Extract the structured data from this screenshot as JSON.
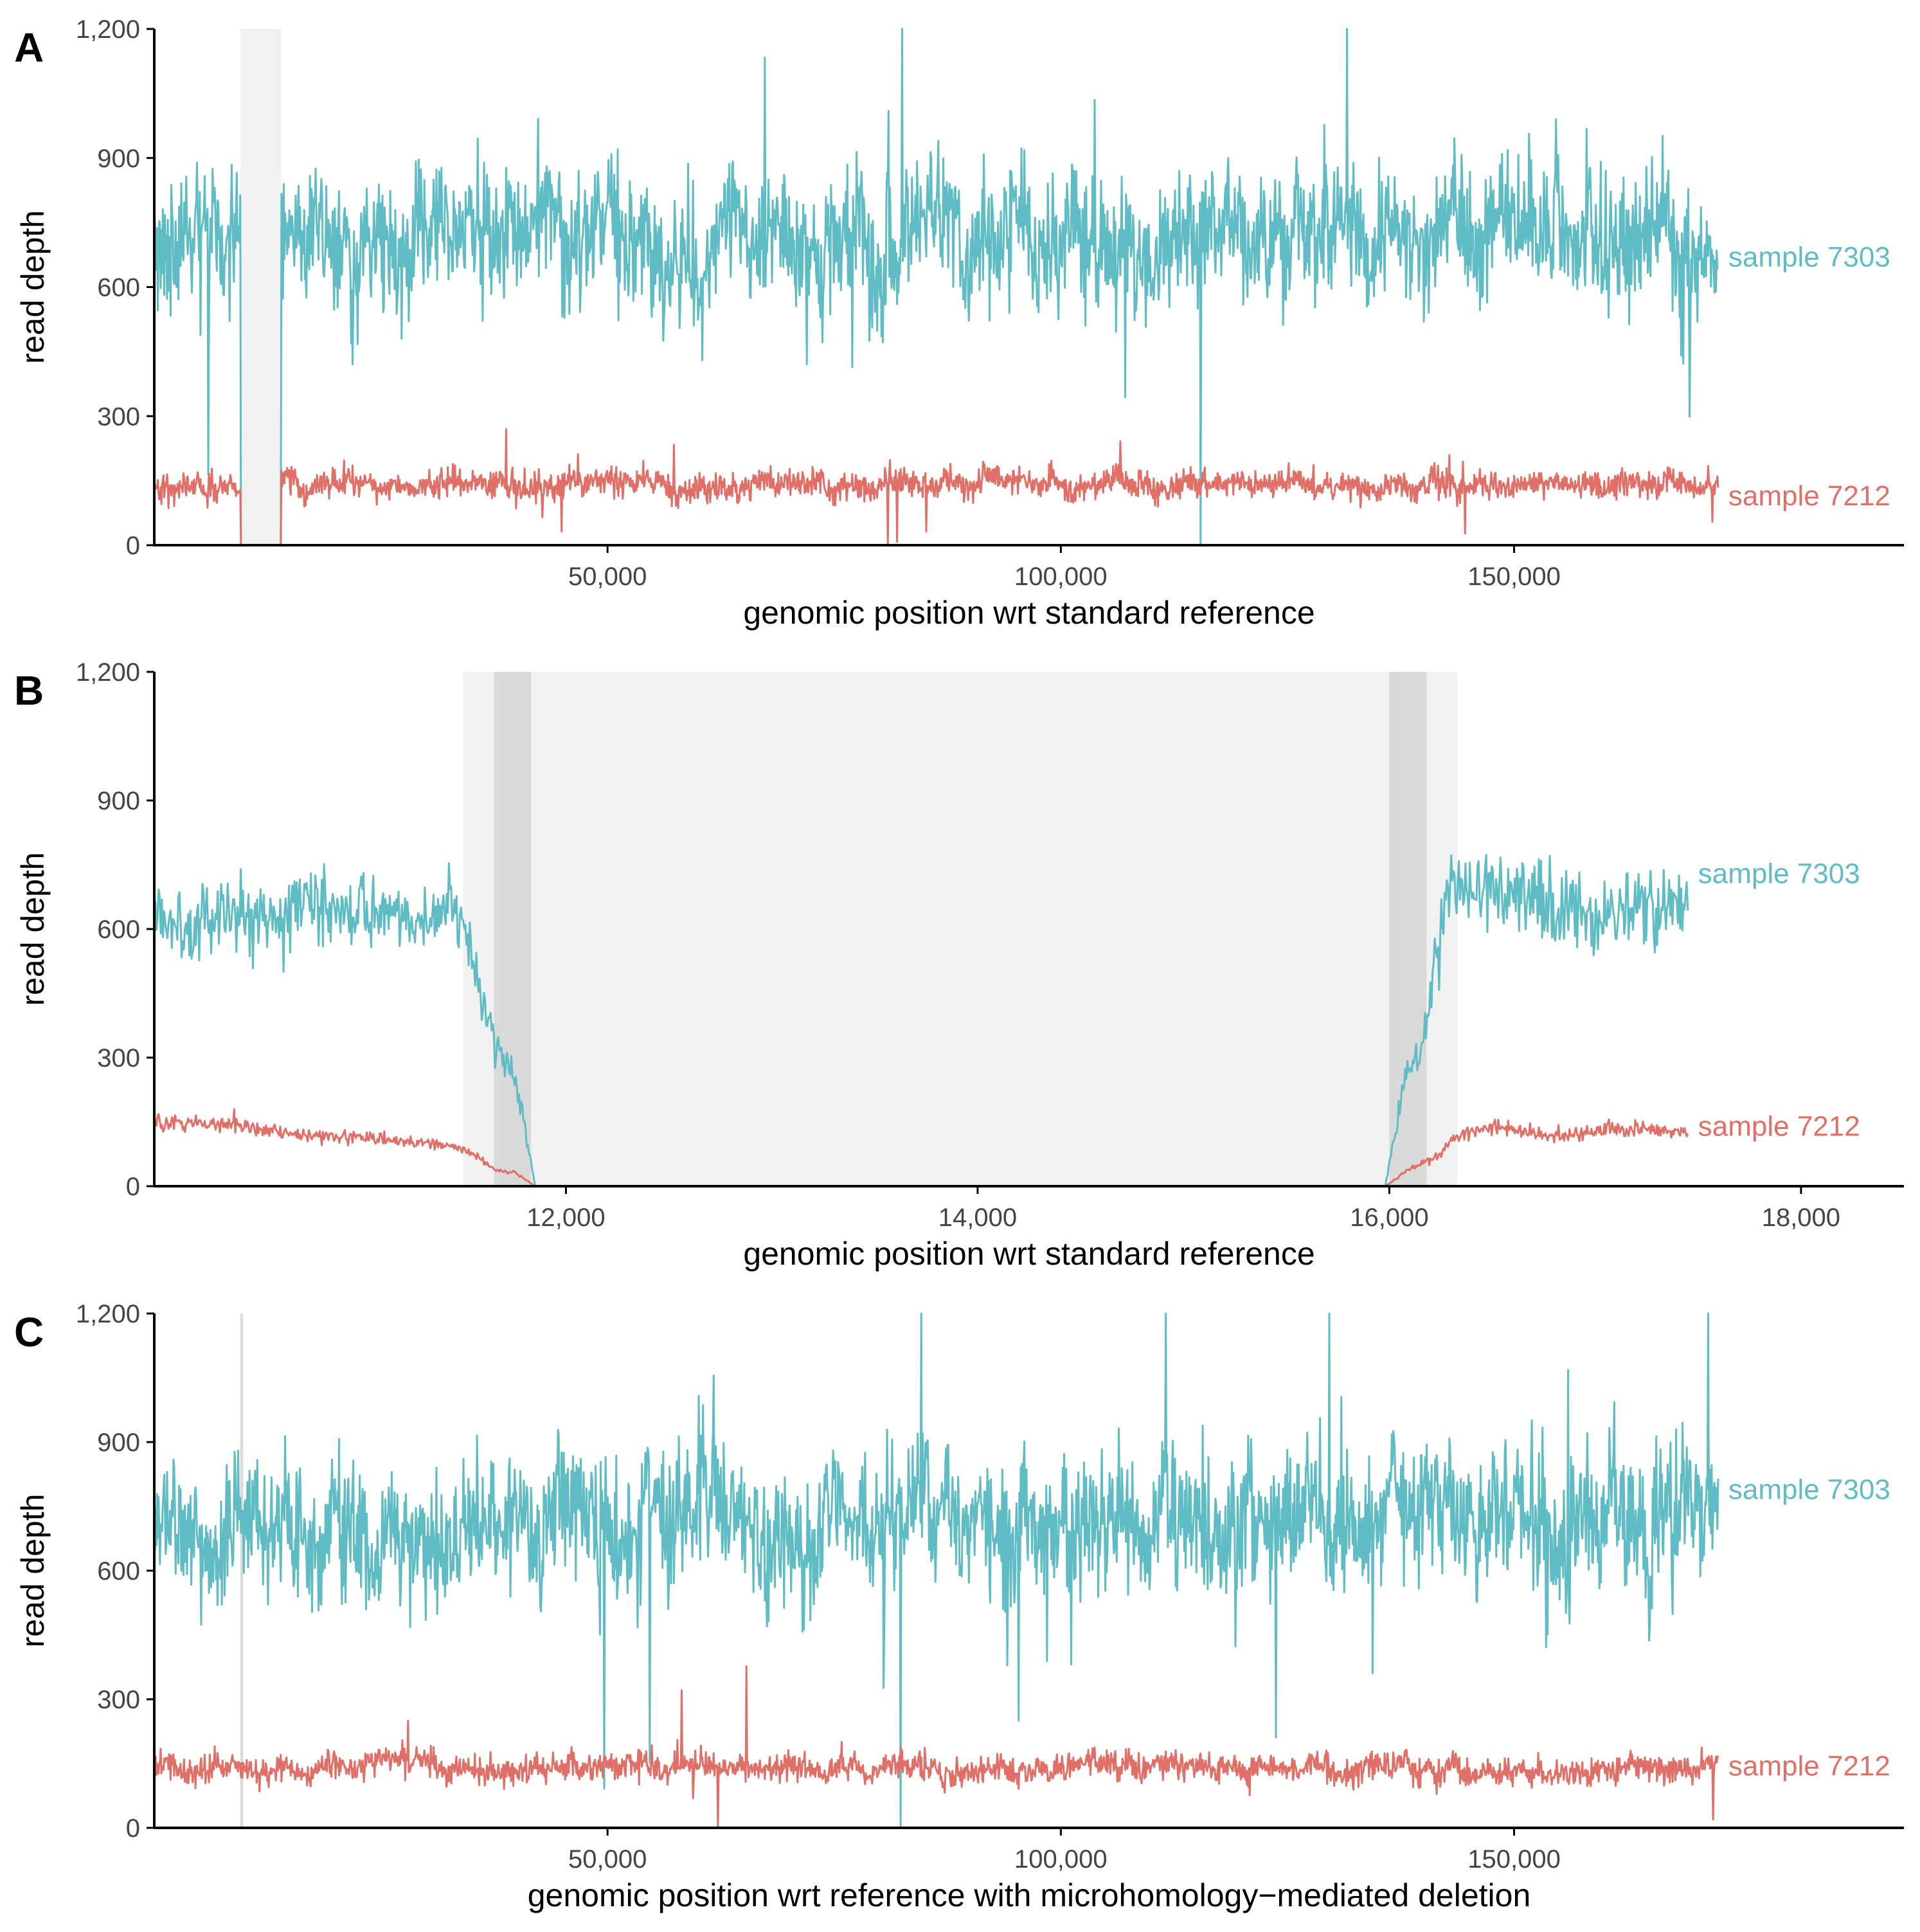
{
  "colors": {
    "teal": "#5fbcc4",
    "salmon": "#e07067",
    "axis": "#000000",
    "tick_text": "#444444",
    "shade_light": "#f1f1f1",
    "shade_dark": "#d9d9d9"
  },
  "chart_data": [
    {
      "type": "line",
      "panel_label": "A",
      "xlabel": "genomic position wrt standard reference",
      "ylabel": "read depth",
      "xlim": [
        1,
        193000
      ],
      "ylim": [
        0,
        1200
      ],
      "x_ticks": [
        50000,
        100000,
        150000
      ],
      "x_tick_labels": [
        "50,000",
        "100,000",
        "150,000"
      ],
      "y_ticks": [
        0,
        300,
        600,
        900,
        1200
      ],
      "y_tick_labels": [
        "0",
        "300",
        "600",
        "900",
        "1,200"
      ],
      "grid": false,
      "shaded_regions": [
        {
          "start": 9500,
          "end": 14000,
          "tone": "light"
        }
      ],
      "series": [
        {
          "name": "sample 7303",
          "label": "sample 7303",
          "color": "#5fbcc4",
          "label_y": 670,
          "profile": "genome",
          "x_start": 1,
          "x_end": 172500,
          "mean": 700,
          "noise": 130,
          "dropouts": [
            [
              9500,
              14000
            ]
          ],
          "seed": 11
        },
        {
          "name": "sample 7212",
          "label": "sample 7212",
          "color": "#e07067",
          "label_y": 115,
          "profile": "genome",
          "x_start": 1,
          "x_end": 172500,
          "mean": 140,
          "noise": 28,
          "dropouts": [
            [
              9500,
              14000
            ]
          ],
          "seed": 23
        }
      ]
    },
    {
      "type": "line",
      "panel_label": "B",
      "xlabel": "genomic position wrt standard reference",
      "ylabel": "read depth",
      "xlim": [
        10000,
        18500
      ],
      "ylim": [
        0,
        1200
      ],
      "x_ticks": [
        12000,
        14000,
        16000,
        18000
      ],
      "x_tick_labels": [
        "12,000",
        "14,000",
        "16,000",
        "18,000"
      ],
      "y_ticks": [
        0,
        300,
        600,
        900,
        1200
      ],
      "y_tick_labels": [
        "0",
        "300",
        "600",
        "900",
        "1,200"
      ],
      "grid": false,
      "shaded_regions": [
        {
          "start": 11500,
          "end": 16330,
          "tone": "light"
        },
        {
          "start": 11650,
          "end": 11830,
          "tone": "dark"
        },
        {
          "start": 16000,
          "end": 16180,
          "tone": "dark"
        }
      ],
      "series": [
        {
          "name": "sample 7303",
          "label": "sample 7303",
          "color": "#5fbcc4",
          "label_y": 730,
          "profile": "zoom",
          "x_start": 10000,
          "x_end": 17450,
          "seed": 5,
          "points": [
            [
              10000,
              620
            ],
            [
              10300,
              630
            ],
            [
              10700,
              650
            ],
            [
              11000,
              660
            ],
            [
              11300,
              620
            ],
            [
              11450,
              650
            ],
            [
              11550,
              520
            ],
            [
              11650,
              340
            ],
            [
              11720,
              290
            ],
            [
              11780,
              200
            ],
            [
              11850,
              0
            ],
            [
              15980,
              0
            ],
            [
              16030,
              130
            ],
            [
              16080,
              260
            ],
            [
              16150,
              300
            ],
            [
              16200,
              450
            ],
            [
              16300,
              700
            ],
            [
              16600,
              690
            ],
            [
              16900,
              640
            ],
            [
              17200,
              650
            ],
            [
              17450,
              660
            ]
          ]
        },
        {
          "name": "sample 7212",
          "label": "sample 7212",
          "color": "#e07067",
          "label_y": 140,
          "profile": "zoom",
          "x_start": 10000,
          "x_end": 17450,
          "seed": 9,
          "points": [
            [
              10000,
              150
            ],
            [
              10400,
              140
            ],
            [
              10700,
              120
            ],
            [
              11000,
              115
            ],
            [
              11300,
              100
            ],
            [
              11450,
              95
            ],
            [
              11550,
              75
            ],
            [
              11650,
              40
            ],
            [
              11760,
              30
            ],
            [
              11850,
              0
            ],
            [
              15980,
              0
            ],
            [
              16100,
              40
            ],
            [
              16230,
              70
            ],
            [
              16330,
              120
            ],
            [
              16500,
              140
            ],
            [
              16800,
              115
            ],
            [
              17100,
              135
            ],
            [
              17450,
              125
            ]
          ]
        }
      ]
    },
    {
      "type": "line",
      "panel_label": "C",
      "xlabel": "genomic position wrt reference with microhomology−mediated deletion",
      "ylabel": "read depth",
      "xlim": [
        1,
        193000
      ],
      "ylim": [
        0,
        1200
      ],
      "x_ticks": [
        50000,
        100000,
        150000
      ],
      "x_tick_labels": [
        "50,000",
        "100,000",
        "150,000"
      ],
      "y_ticks": [
        0,
        300,
        600,
        900,
        1200
      ],
      "y_tick_labels": [
        "0",
        "300",
        "600",
        "900",
        "1,200"
      ],
      "grid": false,
      "shaded_regions": [
        {
          "start": 9500,
          "end": 9800,
          "tone": "dark"
        }
      ],
      "series": [
        {
          "name": "sample 7303",
          "label": "sample 7303",
          "color": "#5fbcc4",
          "label_y": 790,
          "profile": "genome",
          "x_start": 1,
          "x_end": 172500,
          "mean": 710,
          "noise": 135,
          "dropouts": [],
          "seed": 37
        },
        {
          "name": "sample 7212",
          "label": "sample 7212",
          "color": "#e07067",
          "label_y": 145,
          "profile": "genome",
          "x_start": 1,
          "x_end": 172500,
          "mean": 142,
          "noise": 28,
          "dropouts": [],
          "seed": 41
        }
      ]
    }
  ]
}
